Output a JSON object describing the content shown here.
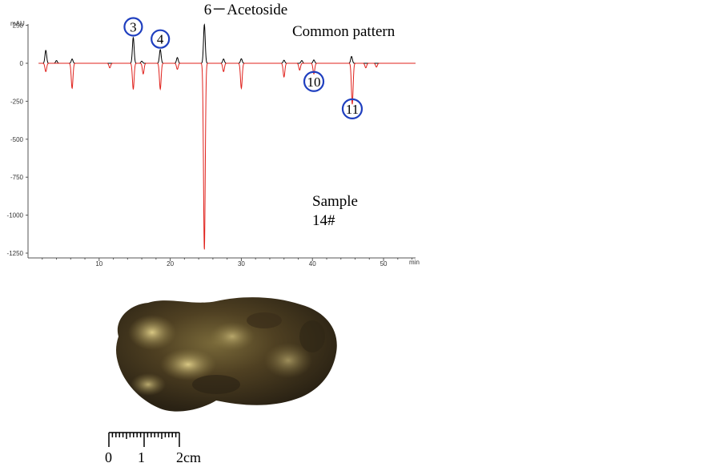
{
  "chart_data": {
    "type": "line",
    "title": "6－Acetoside",
    "ylabel": "mAU",
    "xlabel": "min",
    "xlim": [
      0,
      54.5
    ],
    "ylim": [
      -1270,
      255
    ],
    "yticks": [
      250,
      0,
      -250,
      -500,
      -750,
      -1000,
      -1250
    ],
    "xticks": [
      10,
      20,
      30,
      40,
      50
    ],
    "grid": false,
    "annotations": {
      "common": "Common pattern",
      "sample_line1": "Sample",
      "sample_line2": "14#"
    },
    "series": [
      {
        "color": "#000000",
        "peaks": [
          [
            2.5,
            85
          ],
          [
            4.0,
            18
          ],
          [
            6.2,
            28
          ],
          [
            14.8,
            170
          ],
          [
            16.0,
            14
          ],
          [
            18.6,
            90
          ],
          [
            21.0,
            38
          ],
          [
            24.8,
            255
          ],
          [
            27.5,
            28
          ],
          [
            30.0,
            30
          ],
          [
            36.0,
            20
          ],
          [
            38.5,
            18
          ],
          [
            40.2,
            22
          ],
          [
            45.5,
            45
          ]
        ]
      },
      {
        "color": "#e0201b",
        "peaks": [
          [
            2.5,
            -55
          ],
          [
            6.2,
            -165
          ],
          [
            11.5,
            -30
          ],
          [
            14.8,
            -170
          ],
          [
            16.2,
            -70
          ],
          [
            18.6,
            -170
          ],
          [
            21.0,
            -40
          ],
          [
            24.8,
            -1230
          ],
          [
            27.5,
            -55
          ],
          [
            30.0,
            -165
          ],
          [
            36.0,
            -90
          ],
          [
            38.2,
            -45
          ],
          [
            40.2,
            -70
          ],
          [
            45.6,
            -270
          ],
          [
            47.5,
            -30
          ],
          [
            49.0,
            -25
          ]
        ]
      }
    ],
    "peak_labels": [
      {
        "label": "3",
        "x": 14.8,
        "y": 240
      },
      {
        "label": "4",
        "x": 18.6,
        "y": 160
      },
      {
        "label": "10",
        "x": 40.2,
        "y": -120
      },
      {
        "label": "11",
        "x": 45.6,
        "y": -300
      }
    ]
  },
  "scale_bar": {
    "label_0": "0",
    "label_1": "1",
    "label_2": "2cm"
  },
  "colors": {
    "circle": "#1f3fbf",
    "axis": "#555555"
  }
}
